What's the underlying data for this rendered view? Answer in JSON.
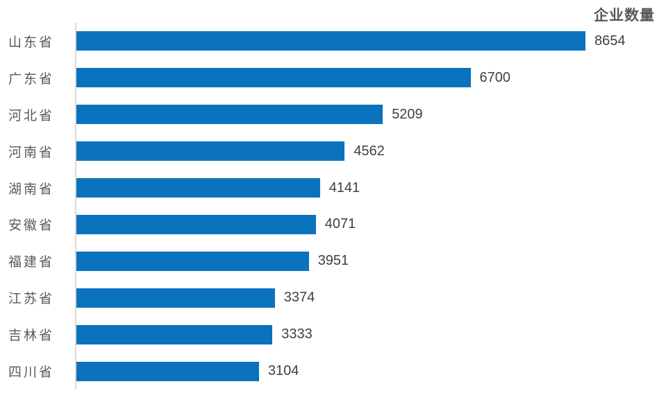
{
  "chart_data": {
    "type": "bar",
    "orientation": "horizontal",
    "title": "企业数量",
    "categories": [
      "山东省",
      "广东省",
      "河北省",
      "河南省",
      "湖南省",
      "安徽省",
      "福建省",
      "江苏省",
      "吉林省",
      "四川省"
    ],
    "values": [
      8654,
      6700,
      5209,
      4562,
      4141,
      4071,
      3951,
      3374,
      3333,
      3104
    ],
    "xlabel": "",
    "ylabel": "",
    "xlim": [
      0,
      9000
    ],
    "grid": false,
    "legend": "none",
    "data_labels": "outside-end",
    "bar_color": "#0B72BE",
    "axis_line_color": "#D9D9D9",
    "category_label_color": "#595959",
    "value_label_color": "#404040",
    "title_color": "#595959"
  }
}
